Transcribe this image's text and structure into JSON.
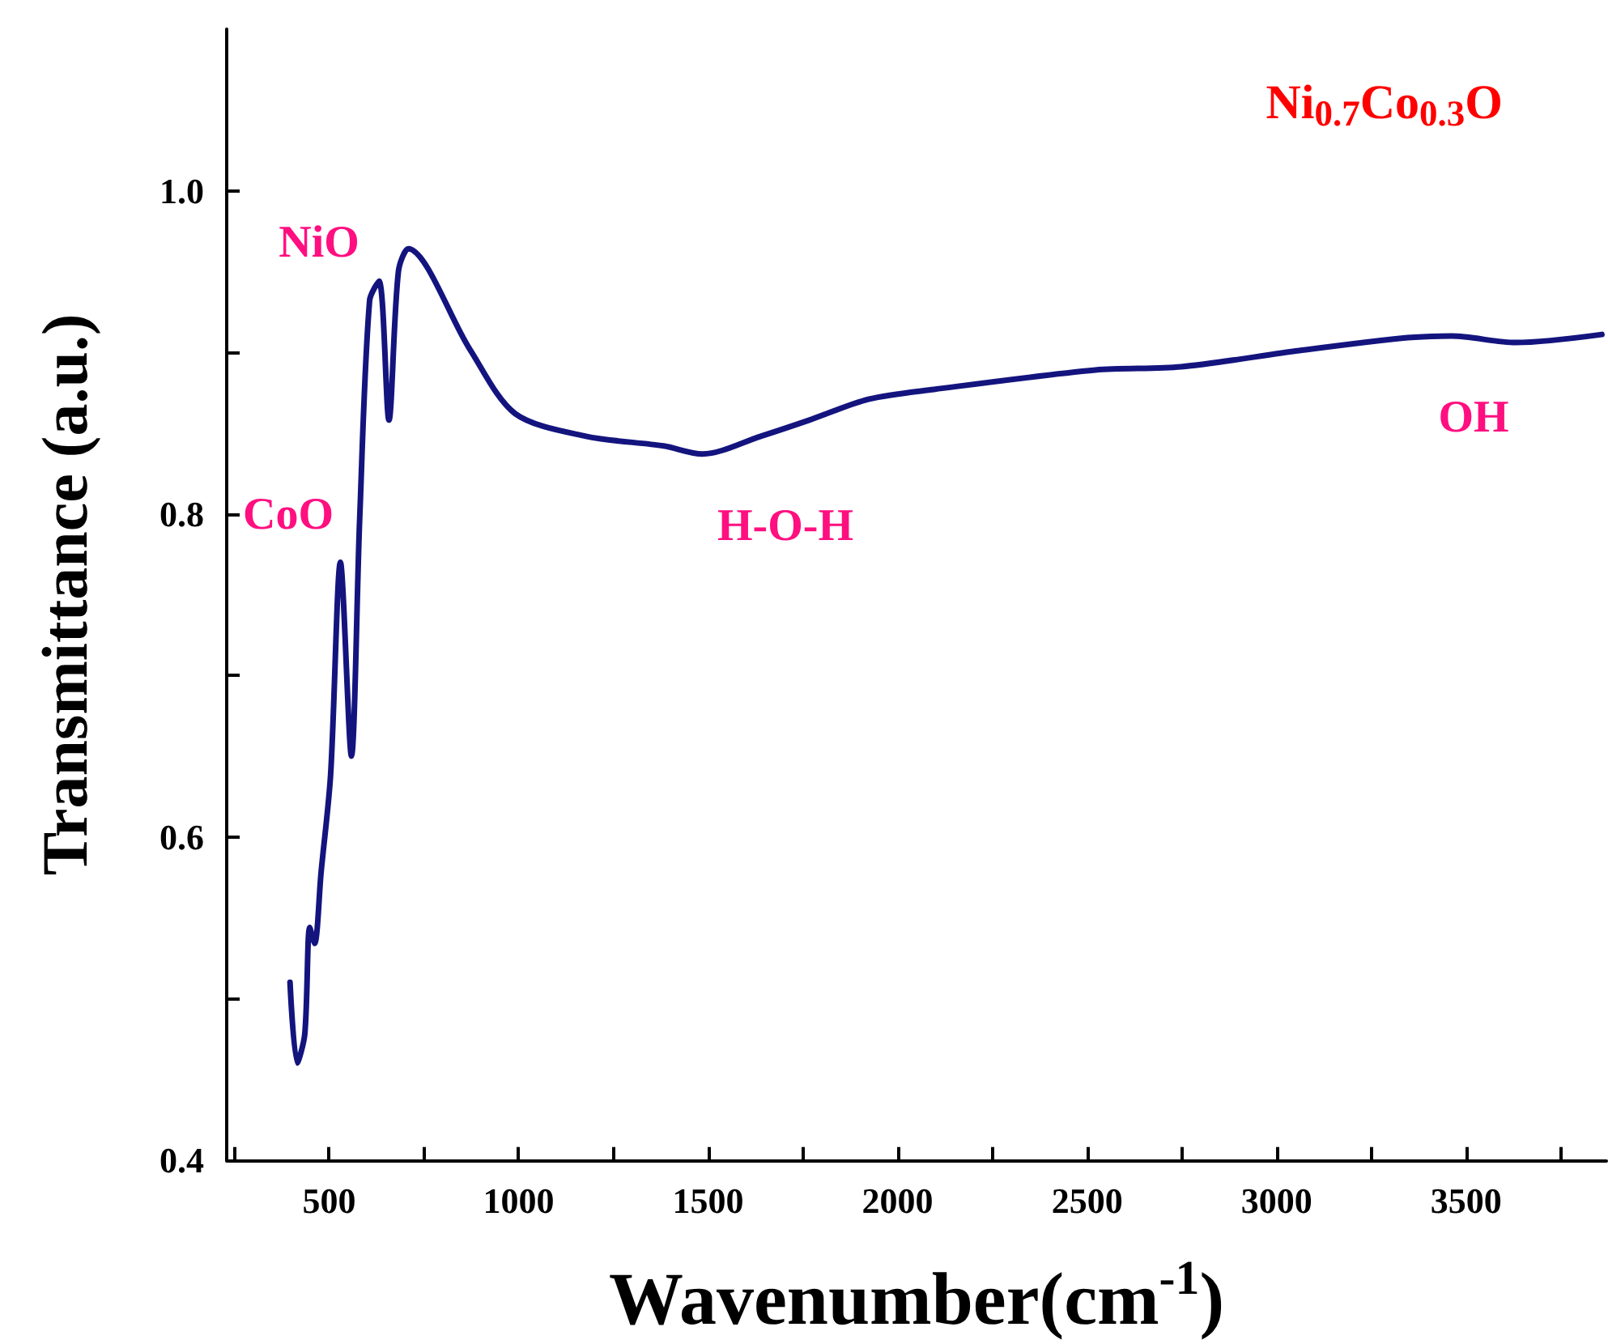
{
  "chart_data": {
    "type": "line",
    "title": "Ni$_{0.7}$Co$_{0.3}$O",
    "xlabel": "Wavenumber(cm$^{-1}$)",
    "ylabel": "Transmittance (a.u.)",
    "series": [
      {
        "color": "#14147f",
        "x": [
          397,
          416,
          436,
          449,
          462,
          479,
          504,
          530,
          559,
          581,
          607,
          632,
          658,
          683,
          709,
          871,
          991,
          1178,
          1383,
          1485,
          1639,
          1767,
          1925,
          2096,
          2522,
          2748,
          3060,
          3346,
          3461,
          3631,
          3858
        ],
        "values": [
          0.51,
          0.46,
          0.478,
          0.544,
          0.534,
          0.578,
          0.638,
          0.77,
          0.65,
          0.798,
          0.932,
          0.944,
          0.858,
          0.95,
          0.964,
          0.902,
          0.862,
          0.848,
          0.842,
          0.837,
          0.848,
          0.858,
          0.871,
          0.877,
          0.889,
          0.891,
          0.901,
          0.909,
          0.91,
          0.906,
          0.911
        ]
      }
    ],
    "annotations": [
      "CoO",
      "NiO",
      "H-O-H",
      "OH"
    ],
    "xlim": [
      230,
      3870
    ],
    "ylim": [
      0.4,
      1.1
    ],
    "xticks": [
      {
        "value": 250,
        "label": null
      },
      500,
      {
        "value": 750,
        "label": null
      },
      1000,
      {
        "value": 1250,
        "label": null
      },
      1500,
      {
        "value": 1750,
        "label": null
      },
      2000,
      {
        "value": 2250,
        "label": null
      },
      2500,
      {
        "value": 2750,
        "label": null
      },
      3000,
      {
        "value": 3250,
        "label": null
      },
      3500,
      {
        "value": 3750,
        "label": null
      }
    ],
    "yticks": [
      {
        "value": 0.4,
        "label": "0.4"
      },
      {
        "value": 0.5,
        "label": null
      },
      {
        "value": 0.6,
        "label": "0.6"
      },
      {
        "value": 0.7,
        "label": null
      },
      {
        "value": 0.8,
        "label": "0.8"
      },
      {
        "value": 0.9,
        "label": null
      },
      {
        "value": 1.0,
        "label": "1.0"
      }
    ],
    "grid": false,
    "marker": "none",
    "line_style": "solid"
  }
}
